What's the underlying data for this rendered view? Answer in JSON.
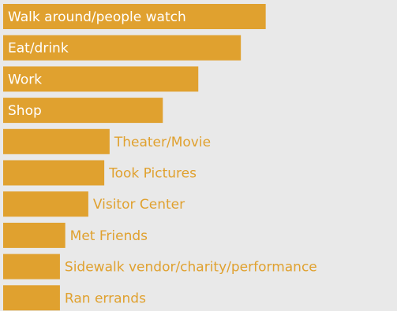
{
  "chart_data": {
    "type": "bar",
    "orientation": "horizontal",
    "categories": [
      "Walk around/people watch",
      "Eat/drink",
      "Work",
      "Shop",
      "Theater/Movie",
      "Took Pictures",
      "Visitor Center",
      "Met Friends",
      "Sidewalk vendor/charity/performance",
      "Ran errands"
    ],
    "series": [
      {
        "values": [
          74,
          67,
          55,
          45,
          30,
          28.5,
          24,
          17.5,
          16,
          16
        ]
      }
    ],
    "xlim": [
      0,
      105
    ],
    "title": "",
    "xlabel": "",
    "ylabel": "",
    "grid": false,
    "legend": "none"
  },
  "colors": {
    "bar": "#e0a12f",
    "label_inside": "#ffffff",
    "label_outside": "#e0a12f",
    "background": "#e9e9e9"
  }
}
